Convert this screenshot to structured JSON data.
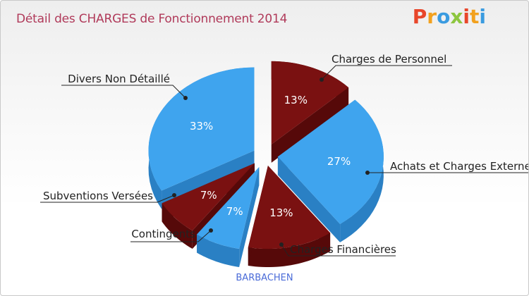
{
  "header": {
    "title": "Détail des CHARGES de Fonctionnement 2014",
    "logo_letters": [
      "P",
      "r",
      "o",
      "x",
      "i",
      "t",
      "i"
    ],
    "logo_colors": [
      "#e8462a",
      "#f2a11e",
      "#3a9be0",
      "#8dc63f",
      "#e8462a",
      "#f2a11e",
      "#3a9be0"
    ]
  },
  "footer": {
    "label": "BARBACHEN"
  },
  "colors": {
    "blue": "#3fa4ee",
    "blue_dark": "#2a80c4",
    "red": "#7a1111",
    "red_dark": "#560909"
  },
  "chart_data": {
    "type": "pie",
    "title": "Détail des CHARGES de Fonctionnement 2014",
    "slices": [
      {
        "label": "Charges de Personnel",
        "pct_label": "13%",
        "value": 13,
        "color": "red"
      },
      {
        "label": "Achats et Charges Externes",
        "pct_label": "27%",
        "value": 27,
        "color": "blue"
      },
      {
        "label": "Charges Financières",
        "pct_label": "13%",
        "value": 13,
        "color": "red"
      },
      {
        "label": "Contingents",
        "pct_label": "7%",
        "value": 7,
        "color": "blue"
      },
      {
        "label": "Subventions Versées",
        "pct_label": "7%",
        "value": 7,
        "color": "red"
      },
      {
        "label": "Divers Non Détaillé",
        "pct_label": "33%",
        "value": 33,
        "color": "blue"
      }
    ]
  }
}
